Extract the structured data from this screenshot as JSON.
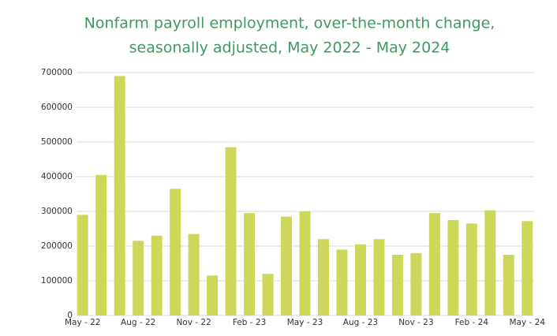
{
  "chart_data": {
    "type": "bar",
    "title": [
      "Nonfarm payroll employment, over-the-month change,",
      "seasonally adjusted, May 2022 - May 2024"
    ],
    "categories": [
      "May - 22",
      null,
      null,
      "Aug - 22",
      null,
      null,
      "Nov - 22",
      null,
      null,
      "Feb - 23",
      null,
      null,
      "May - 23",
      null,
      null,
      "Aug - 23",
      null,
      null,
      "Nov - 23",
      null,
      null,
      "Feb - 24",
      null,
      null,
      "May - 24"
    ],
    "values": [
      290000,
      405000,
      690000,
      215000,
      230000,
      365000,
      235000,
      115000,
      485000,
      295000,
      120000,
      285000,
      300000,
      220000,
      190000,
      205000,
      220000,
      175000,
      180000,
      295000,
      275000,
      265000,
      303000,
      175000,
      272000
    ],
    "color": "#cdd85b",
    "ylim": [
      0,
      700000
    ],
    "yticks": [
      0,
      100000,
      200000,
      300000,
      400000,
      500000,
      600000,
      700000
    ],
    "grid": true
  }
}
